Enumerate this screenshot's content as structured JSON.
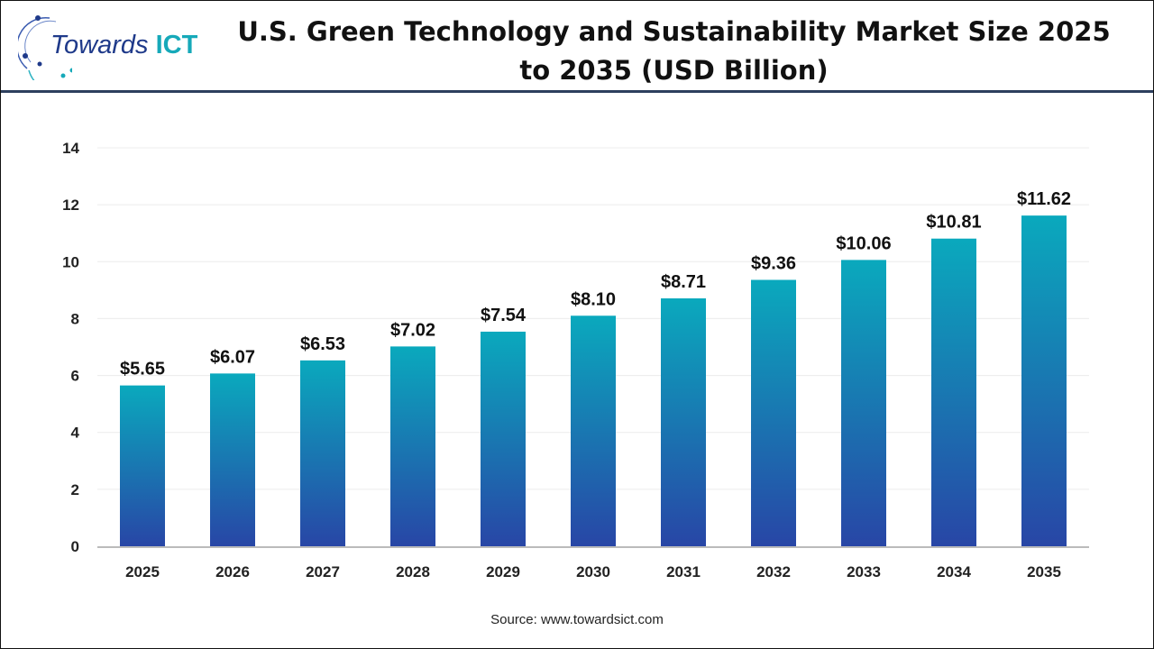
{
  "logo": {
    "name": "Towards",
    "highlight": "ICT"
  },
  "source": "Source: www.towardsict.com",
  "colors": {
    "bar_top": "#0aa9bd",
    "bar_bottom": "#2846a6",
    "header_line": "#2d3f5e"
  },
  "chart_data": {
    "type": "bar",
    "title": "U.S. Green Technology and Sustainability Market Size 2025 to 2035 (USD Billion)",
    "categories": [
      "2025",
      "2026",
      "2027",
      "2028",
      "2029",
      "2030",
      "2031",
      "2032",
      "2033",
      "2034",
      "2035"
    ],
    "values": [
      5.65,
      6.07,
      6.53,
      7.02,
      7.54,
      8.1,
      8.71,
      9.36,
      10.06,
      10.81,
      11.62
    ],
    "data_labels": [
      "$5.65",
      "$6.07",
      "$6.53",
      "$7.02",
      "$7.54",
      "$8.10",
      "$8.71",
      "$9.36",
      "$10.06",
      "$10.81",
      "$11.62"
    ],
    "yticks": [
      0,
      2,
      4,
      6,
      8,
      10,
      12,
      14
    ],
    "ylim": [
      0,
      14
    ],
    "xlabel": "",
    "ylabel": "",
    "grid": true,
    "legend": "none"
  }
}
